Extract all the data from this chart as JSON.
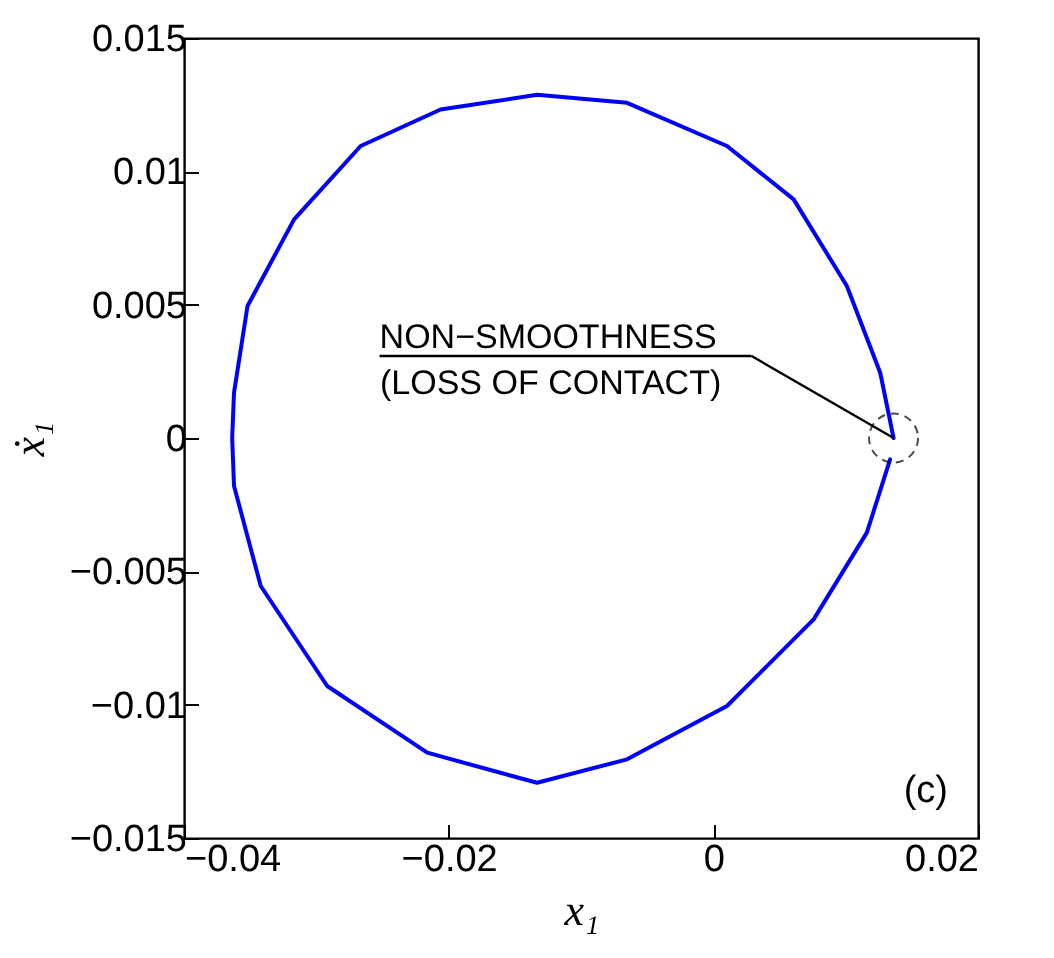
{
  "chart_data": {
    "type": "line",
    "xlabel": "x₁",
    "ylabel": "ẋ₁",
    "x": [
      0.01362,
      0.01261,
      0.01009,
      0.00607,
      0.00103,
      -0.00652,
      -0.01332,
      -0.02061,
      -0.02665,
      -0.03168,
      -0.0352,
      -0.03622,
      -0.03636,
      -0.03622,
      -0.0342,
      -0.02918,
      -0.02162,
      -0.01332,
      -0.00652,
      0.00103,
      0.00758,
      0.0116,
      0.01336
    ],
    "series": [
      {
        "color": "#0000ff",
        "values": [
          0,
          0.00245,
          0.0057,
          0.00895,
          0.01095,
          0.01257,
          0.01287,
          0.01232,
          0.01095,
          0.0082,
          0.00495,
          0.0017,
          0,
          -0.0018,
          -0.00555,
          -0.0093,
          -0.0118,
          -0.01293,
          -0.01205,
          -0.01005,
          -0.0068,
          -0.00355,
          -0.0008
        ]
      }
    ],
    "xlim": [
      -0.04,
      0.02
    ],
    "xticks": [
      -0.04,
      -0.02,
      0,
      0.02
    ],
    "ylim": [
      -0.015,
      0.015
    ],
    "yticks": [
      -0.015,
      -0.01,
      -0.005,
      0,
      0.005,
      0.01,
      0.015
    ],
    "grid": false,
    "marker": "none",
    "line_style": "solid",
    "annotations": [
      {
        "text": "NON−SMOOTHNESS",
        "x": 0.01362,
        "y": 0
      },
      "(LOSS OF CONTACT)",
      "(c)"
    ]
  }
}
